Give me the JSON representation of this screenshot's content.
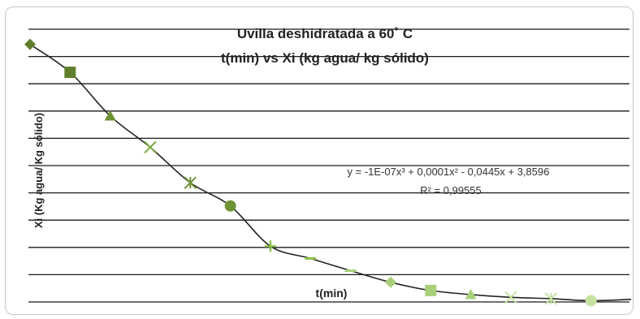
{
  "chart_data": {
    "type": "scatter",
    "title": "Uvilla deshidratada a 60˚ C",
    "subtitle": "t(min) vs Xi (kg agua/ kg sólido)",
    "ylabel": "Xi (Kg agua/ Kg sólido)",
    "xlabel": "t(min)",
    "xlim": [
      0,
      300
    ],
    "ylim": [
      0,
      4
    ],
    "grid": true,
    "points": [
      {
        "x": 0,
        "y": 3.79,
        "marker": "diamond",
        "color": "#5f7f2e"
      },
      {
        "x": 20,
        "y": 3.38,
        "marker": "square",
        "color": "#5f7f2e"
      },
      {
        "x": 40,
        "y": 2.74,
        "marker": "triangle",
        "color": "#6e9234"
      },
      {
        "x": 60,
        "y": 2.28,
        "marker": "x",
        "color": "#7aa83f"
      },
      {
        "x": 80,
        "y": 1.76,
        "marker": "star",
        "color": "#6e9234"
      },
      {
        "x": 100,
        "y": 1.42,
        "marker": "circle",
        "color": "#6e9234"
      },
      {
        "x": 120,
        "y": 0.83,
        "marker": "plus",
        "color": "#8cc04a"
      },
      {
        "x": 140,
        "y": 0.65,
        "marker": "dash",
        "color": "#8cc04a"
      },
      {
        "x": 160,
        "y": 0.47,
        "marker": "dash",
        "color": "#a8d07a"
      },
      {
        "x": 180,
        "y": 0.3,
        "marker": "diamond",
        "color": "#a8d07a"
      },
      {
        "x": 200,
        "y": 0.18,
        "marker": "square",
        "color": "#a8d07a"
      },
      {
        "x": 220,
        "y": 0.12,
        "marker": "triangle",
        "color": "#a8d07a"
      },
      {
        "x": 240,
        "y": 0.08,
        "marker": "x",
        "color": "#c5e2a0"
      },
      {
        "x": 260,
        "y": 0.06,
        "marker": "star",
        "color": "#c5e2a0"
      },
      {
        "x": 280,
        "y": 0.03,
        "marker": "circle",
        "color": "#c5e2a0"
      }
    ],
    "trendline": {
      "type": "polynomial",
      "order": 3,
      "equation": "y = -1E-07x³ + 0,0001x² - 0,0445x + 3,8596",
      "r_squared": "R² = 0,99555",
      "color": "#222222"
    }
  }
}
